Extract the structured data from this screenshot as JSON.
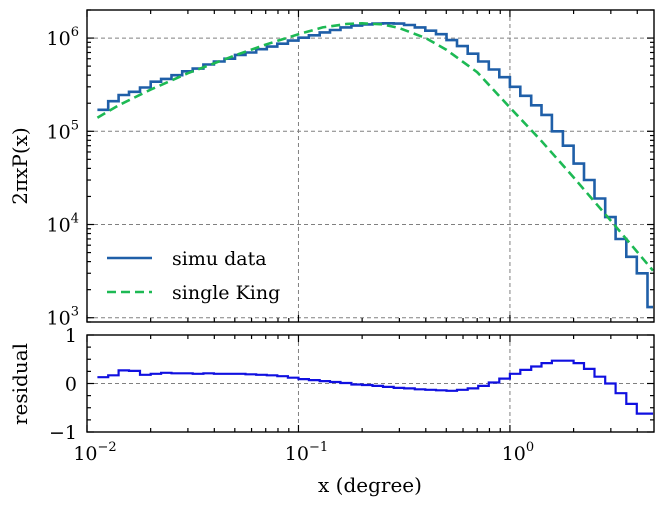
{
  "chart_data": [
    {
      "type": "line",
      "panel": "main",
      "xscale": "log",
      "yscale": "log",
      "xlim": [
        0.01,
        4.8
      ],
      "ylim": [
        900,
        2000000
      ],
      "ylabel": "2πxP(x)",
      "xlabel": "",
      "grid": true,
      "legend_position": "lower-left",
      "yticks": [
        {
          "value": 1000,
          "base": "10",
          "exp": "3"
        },
        {
          "value": 10000,
          "base": "10",
          "exp": "4"
        },
        {
          "value": 100000,
          "base": "10",
          "exp": "5"
        },
        {
          "value": 1000000,
          "base": "10",
          "exp": "6"
        }
      ],
      "series": [
        {
          "name": "simu data",
          "style": "step",
          "color": "#1f5fa8",
          "edges": [
            0.0112,
            0.0126,
            0.0141,
            0.0158,
            0.0178,
            0.02,
            0.0224,
            0.0251,
            0.0282,
            0.0316,
            0.0355,
            0.0398,
            0.0447,
            0.0501,
            0.0562,
            0.0631,
            0.0708,
            0.0794,
            0.0891,
            0.1,
            0.112,
            0.126,
            0.141,
            0.158,
            0.178,
            0.2,
            0.224,
            0.251,
            0.282,
            0.316,
            0.355,
            0.398,
            0.447,
            0.501,
            0.562,
            0.631,
            0.708,
            0.794,
            0.891,
            1.0,
            1.12,
            1.26,
            1.41,
            1.58,
            1.78,
            2.0,
            2.24,
            2.51,
            2.82,
            3.16,
            3.55,
            3.98,
            4.47,
            4.75
          ],
          "values": [
            170000,
            210000,
            245000,
            265000,
            295000,
            340000,
            365000,
            400000,
            440000,
            470000,
            520000,
            560000,
            600000,
            660000,
            700000,
            760000,
            810000,
            870000,
            940000,
            1010000,
            1070000,
            1150000,
            1220000,
            1300000,
            1360000,
            1400000,
            1430000,
            1440000,
            1430000,
            1380000,
            1300000,
            1200000,
            1100000,
            950000,
            820000,
            680000,
            560000,
            460000,
            380000,
            300000,
            240000,
            190000,
            150000,
            100000,
            70000,
            45000,
            30000,
            19000,
            12000,
            7000,
            4500,
            3000,
            1300
          ]
        },
        {
          "name": "single King",
          "style": "dashed",
          "color": "#1db954",
          "x": [
            0.0112,
            0.0141,
            0.02,
            0.03,
            0.05,
            0.07,
            0.1,
            0.13,
            0.17,
            0.2,
            0.25,
            0.3,
            0.4,
            0.5,
            0.7,
            1.0,
            1.4,
            2.0,
            3.0,
            4.75
          ],
          "y": [
            140000,
            190000,
            280000,
            420000,
            650000,
            850000,
            1100000,
            1300000,
            1420000,
            1440000,
            1400000,
            1280000,
            1000000,
            750000,
            430000,
            180000,
            80000,
            32000,
            11000,
            3200
          ]
        }
      ]
    },
    {
      "type": "line",
      "panel": "residual",
      "xscale": "log",
      "xlim": [
        0.01,
        4.8
      ],
      "ylim": [
        -1,
        1
      ],
      "xlabel": "x (degree)",
      "ylabel": "residual",
      "grid": true,
      "yticks": [
        {
          "value": -1,
          "label": "−1"
        },
        {
          "value": 0,
          "label": "0"
        },
        {
          "value": 1,
          "label": "1"
        }
      ],
      "xticks": [
        {
          "value": 0.01,
          "base": "10",
          "exp": "−2"
        },
        {
          "value": 0.1,
          "base": "10",
          "exp": "−1"
        },
        {
          "value": 1,
          "base": "10",
          "exp": "0"
        }
      ],
      "series": [
        {
          "name": "residual",
          "style": "step",
          "color": "#1010e0",
          "edges": [
            0.0112,
            0.0126,
            0.0141,
            0.0158,
            0.0178,
            0.02,
            0.0224,
            0.0251,
            0.0282,
            0.0316,
            0.0355,
            0.0398,
            0.0447,
            0.0501,
            0.0562,
            0.0631,
            0.0708,
            0.0794,
            0.0891,
            0.1,
            0.112,
            0.126,
            0.141,
            0.158,
            0.178,
            0.2,
            0.224,
            0.251,
            0.282,
            0.316,
            0.355,
            0.398,
            0.447,
            0.501,
            0.562,
            0.631,
            0.708,
            0.794,
            0.891,
            1.0,
            1.12,
            1.26,
            1.41,
            1.58,
            1.78,
            2.0,
            2.24,
            2.51,
            2.82,
            3.16,
            3.55,
            3.98,
            4.47,
            4.75
          ],
          "values": [
            0.13,
            0.17,
            0.27,
            0.26,
            0.18,
            0.2,
            0.22,
            0.21,
            0.21,
            0.2,
            0.21,
            0.2,
            0.2,
            0.2,
            0.19,
            0.18,
            0.17,
            0.15,
            0.12,
            0.09,
            0.07,
            0.05,
            0.03,
            0.01,
            -0.02,
            -0.03,
            -0.05,
            -0.07,
            -0.09,
            -0.1,
            -0.12,
            -0.13,
            -0.14,
            -0.15,
            -0.13,
            -0.1,
            -0.05,
            0.02,
            0.1,
            0.2,
            0.28,
            0.35,
            0.42,
            0.47,
            0.47,
            0.42,
            0.3,
            0.14,
            0.0,
            -0.2,
            -0.42,
            -0.62,
            -0.62
          ]
        }
      ]
    }
  ]
}
